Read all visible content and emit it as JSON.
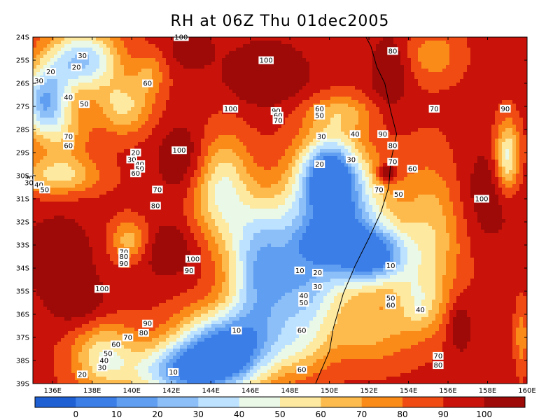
{
  "title": "RH at 06Z Thu 01dec2005",
  "chart_data": {
    "type": "heatmap",
    "title": "RH at 06Z Thu 01dec2005",
    "x_ticks": [
      "136E",
      "138E",
      "140E",
      "142E",
      "144E",
      "146E",
      "148E",
      "150E",
      "152E",
      "154E",
      "156E",
      "158E",
      "160E"
    ],
    "y_ticks": [
      "24S",
      "25S",
      "26S",
      "27S",
      "28S",
      "29S",
      "30S",
      "31S",
      "32S",
      "33S",
      "34S",
      "35S",
      "36S",
      "37S",
      "38S",
      "39S"
    ],
    "colorbar_labels": [
      "0",
      "10",
      "20",
      "30",
      "40",
      "50",
      "60",
      "70",
      "80",
      "90",
      "100"
    ],
    "colorbar_colors": [
      "#1f5fd4",
      "#3c7ee8",
      "#5f9ef0",
      "#8cbef7",
      "#bde2ff",
      "#e9f8e7",
      "#fde9a0",
      "#fdbb4e",
      "#fb8b19",
      "#ef4b12",
      "#c8120a",
      "#9e0a08"
    ],
    "contour_labels": [
      {
        "text": "100",
        "lon": 142.5,
        "lat": -24.0
      },
      {
        "text": "30",
        "lon": 137.5,
        "lat": -24.8
      },
      {
        "text": "20",
        "lon": 137.2,
        "lat": -25.3
      },
      {
        "text": "20",
        "lon": 135.9,
        "lat": -25.5
      },
      {
        "text": "30",
        "lon": 135.3,
        "lat": -25.9
      },
      {
        "text": "60",
        "lon": 140.8,
        "lat": -26.0
      },
      {
        "text": "100",
        "lon": 146.8,
        "lat": -25.0
      },
      {
        "text": "80",
        "lon": 153.2,
        "lat": -24.6
      },
      {
        "text": "40",
        "lon": 136.8,
        "lat": -26.6
      },
      {
        "text": "50",
        "lon": 137.6,
        "lat": -26.9
      },
      {
        "text": "100",
        "lon": 145.0,
        "lat": -27.1
      },
      {
        "text": "90",
        "lon": 147.3,
        "lat": -27.2
      },
      {
        "text": "60",
        "lon": 147.4,
        "lat": -27.4
      },
      {
        "text": "70",
        "lon": 147.4,
        "lat": -27.6
      },
      {
        "text": "60",
        "lon": 149.5,
        "lat": -27.1
      },
      {
        "text": "50",
        "lon": 149.5,
        "lat": -27.4
      },
      {
        "text": "70",
        "lon": 155.3,
        "lat": -27.1
      },
      {
        "text": "90",
        "lon": 158.9,
        "lat": -27.1
      },
      {
        "text": "70",
        "lon": 136.8,
        "lat": -28.3
      },
      {
        "text": "60",
        "lon": 136.8,
        "lat": -28.7
      },
      {
        "text": "40",
        "lon": 151.3,
        "lat": -28.2
      },
      {
        "text": "30",
        "lon": 149.6,
        "lat": -28.3
      },
      {
        "text": "90",
        "lon": 152.7,
        "lat": -28.2
      },
      {
        "text": "80",
        "lon": 153.2,
        "lat": -28.7
      },
      {
        "text": "100",
        "lon": 142.4,
        "lat": -28.9
      },
      {
        "text": "20",
        "lon": 140.2,
        "lat": -29.0
      },
      {
        "text": "30",
        "lon": 140.0,
        "lat": -29.3
      },
      {
        "text": "40",
        "lon": 140.4,
        "lat": -29.5
      },
      {
        "text": "50",
        "lon": 140.4,
        "lat": -29.7
      },
      {
        "text": "60",
        "lon": 140.2,
        "lat": -29.9
      },
      {
        "text": "30",
        "lon": 151.1,
        "lat": -29.3
      },
      {
        "text": "70",
        "lon": 153.2,
        "lat": -29.4
      },
      {
        "text": "20",
        "lon": 149.5,
        "lat": -29.5
      },
      {
        "text": "60",
        "lon": 154.2,
        "lat": -29.7
      },
      {
        "text": "30",
        "lon": 134.8,
        "lat": -30.1
      },
      {
        "text": "30",
        "lon": 134.8,
        "lat": -30.3
      },
      {
        "text": "40",
        "lon": 135.3,
        "lat": -30.4
      },
      {
        "text": "50",
        "lon": 135.6,
        "lat": -30.6
      },
      {
        "text": "70",
        "lon": 141.3,
        "lat": -30.6
      },
      {
        "text": "70",
        "lon": 152.5,
        "lat": -30.6
      },
      {
        "text": "50",
        "lon": 153.5,
        "lat": -30.8
      },
      {
        "text": "100",
        "lon": 157.7,
        "lat": -31.0
      },
      {
        "text": "80",
        "lon": 141.2,
        "lat": -31.3
      },
      {
        "text": "70",
        "lon": 139.6,
        "lat": -33.3
      },
      {
        "text": "80",
        "lon": 139.6,
        "lat": -33.5
      },
      {
        "text": "90",
        "lon": 139.6,
        "lat": -33.8
      },
      {
        "text": "100",
        "lon": 143.1,
        "lat": -33.6
      },
      {
        "text": "90",
        "lon": 142.9,
        "lat": -34.1
      },
      {
        "text": "10",
        "lon": 148.5,
        "lat": -34.1
      },
      {
        "text": "20",
        "lon": 149.4,
        "lat": -34.2
      },
      {
        "text": "10",
        "lon": 153.1,
        "lat": -33.9
      },
      {
        "text": "30",
        "lon": 149.4,
        "lat": -34.8
      },
      {
        "text": "100",
        "lon": 138.5,
        "lat": -34.9
      },
      {
        "text": "40",
        "lon": 148.7,
        "lat": -35.2
      },
      {
        "text": "50",
        "lon": 148.7,
        "lat": -35.5
      },
      {
        "text": "50",
        "lon": 153.1,
        "lat": -35.3
      },
      {
        "text": "60",
        "lon": 153.1,
        "lat": -35.6
      },
      {
        "text": "40",
        "lon": 154.6,
        "lat": -35.8
      },
      {
        "text": "90",
        "lon": 140.8,
        "lat": -36.4
      },
      {
        "text": "80",
        "lon": 140.6,
        "lat": -36.8
      },
      {
        "text": "10",
        "lon": 145.3,
        "lat": -36.7
      },
      {
        "text": "60",
        "lon": 148.6,
        "lat": -36.7
      },
      {
        "text": "70",
        "lon": 139.8,
        "lat": -37.0
      },
      {
        "text": "60",
        "lon": 139.2,
        "lat": -37.3
      },
      {
        "text": "50",
        "lon": 138.8,
        "lat": -37.7
      },
      {
        "text": "40",
        "lon": 138.6,
        "lat": -38.0
      },
      {
        "text": "30",
        "lon": 138.5,
        "lat": -38.3
      },
      {
        "text": "70",
        "lon": 155.5,
        "lat": -37.8
      },
      {
        "text": "80",
        "lon": 155.5,
        "lat": -38.2
      },
      {
        "text": "20",
        "lon": 137.5,
        "lat": -38.6
      },
      {
        "text": "10",
        "lon": 142.1,
        "lat": -38.5
      },
      {
        "text": "60",
        "lon": 148.6,
        "lat": -38.4
      }
    ]
  }
}
